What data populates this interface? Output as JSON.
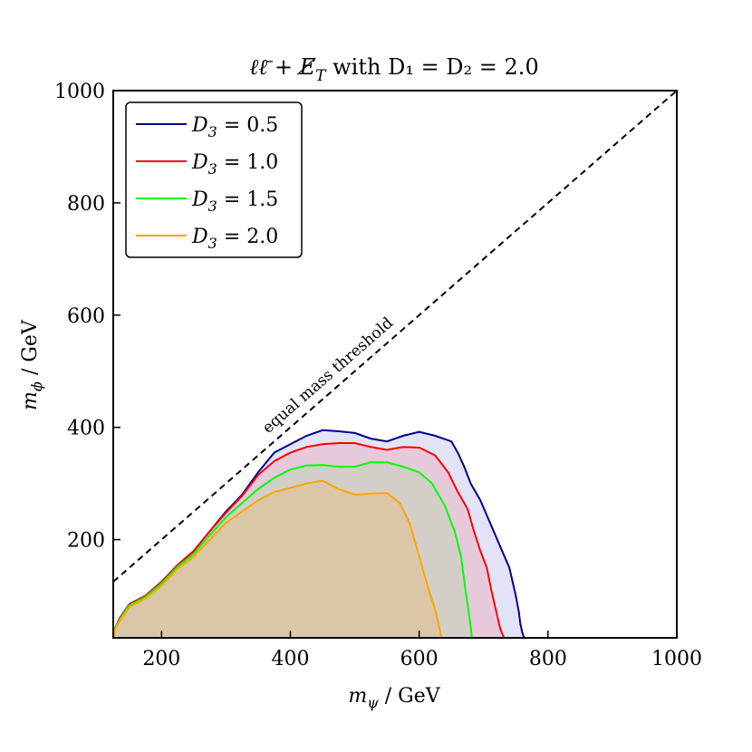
{
  "chart_data": {
    "type": "area",
    "title": "ℓℓ̄ + E̸T with D1 = D2 = 2.0",
    "title_parts": {
      "main": "ℓℓ̄ + E̸",
      "sub": "T",
      "tail": " with D₁ = D₂ = 2.0"
    },
    "xlabel": "mψ / GeV",
    "xlabel_parts": {
      "main": "m",
      "sub": "ψ",
      "tail": " / GeV"
    },
    "ylabel": "mϕ / GeV",
    "ylabel_parts": {
      "main": "m",
      "sub": "ϕ",
      "tail": " / GeV"
    },
    "xlim": [
      125,
      1000
    ],
    "ylim": [
      25,
      1000
    ],
    "xticks": [
      200,
      400,
      600,
      800,
      1000
    ],
    "yticks": [
      200,
      400,
      600,
      800,
      1000
    ],
    "grid": false,
    "legend_position": "top-left",
    "diagonal": {
      "label": "equal mass threshold",
      "style": "dashed",
      "color": "#000000",
      "from": [
        125,
        125
      ],
      "to": [
        1000,
        1000
      ]
    },
    "series": [
      {
        "name": "D3 = 0.5",
        "label_main": "D",
        "label_sub": "3",
        "label_tail": " = 0.5",
        "color": "#00008b",
        "fill": "rgba(0,0,180,0.11)",
        "x": [
          125,
          127,
          135,
          150,
          175,
          200,
          225,
          250,
          275,
          300,
          325,
          350,
          375,
          400,
          425,
          450,
          475,
          500,
          525,
          550,
          575,
          600,
          625,
          650,
          660,
          670,
          680,
          695,
          710,
          725,
          740,
          750,
          755,
          757,
          760,
          762,
          763
        ],
        "y": [
          25,
          40,
          60,
          85,
          100,
          125,
          155,
          180,
          215,
          250,
          280,
          320,
          355,
          370,
          385,
          395,
          393,
          390,
          380,
          375,
          385,
          392,
          385,
          375,
          355,
          330,
          300,
          270,
          230,
          190,
          150,
          100,
          70,
          50,
          35,
          28,
          25
        ]
      },
      {
        "name": "D3 = 1.0",
        "label_main": "D",
        "label_sub": "3",
        "label_tail": " = 1.0",
        "color": "#ff0000",
        "fill": "rgba(255,0,0,0.11)",
        "x": [
          125,
          127,
          135,
          150,
          175,
          200,
          225,
          250,
          275,
          300,
          325,
          350,
          375,
          400,
          425,
          450,
          475,
          500,
          525,
          550,
          575,
          600,
          625,
          645,
          660,
          675,
          685,
          695,
          705,
          712,
          720,
          725,
          728,
          732
        ],
        "y": [
          25,
          40,
          60,
          85,
          100,
          125,
          155,
          180,
          215,
          248,
          278,
          315,
          340,
          355,
          365,
          370,
          372,
          372,
          365,
          360,
          365,
          364,
          350,
          320,
          285,
          255,
          215,
          180,
          150,
          110,
          70,
          45,
          35,
          25
        ]
      },
      {
        "name": "D3 = 1.5",
        "label_main": "D",
        "label_sub": "3",
        "label_tail": " = 1.5",
        "color": "#00ff00",
        "fill": "rgba(0,255,0,0.08)",
        "x": [
          125,
          127,
          135,
          150,
          175,
          200,
          225,
          250,
          275,
          300,
          325,
          350,
          375,
          400,
          425,
          450,
          475,
          500,
          525,
          550,
          575,
          600,
          620,
          640,
          655,
          665,
          672,
          677,
          680,
          682
        ],
        "y": [
          25,
          40,
          58,
          83,
          98,
          122,
          152,
          175,
          208,
          240,
          265,
          290,
          310,
          325,
          332,
          333,
          330,
          330,
          338,
          338,
          330,
          320,
          300,
          260,
          215,
          170,
          110,
          70,
          45,
          25
        ]
      },
      {
        "name": "D3 = 2.0",
        "label_main": "D",
        "label_sub": "3",
        "label_tail": " = 2.0",
        "color": "#ffa500",
        "fill": "rgba(255,165,0,0.17)",
        "x": [
          125,
          127,
          135,
          150,
          175,
          200,
          225,
          250,
          275,
          300,
          325,
          350,
          375,
          400,
          425,
          450,
          475,
          500,
          525,
          550,
          570,
          585,
          595,
          605,
          615,
          625,
          630,
          634,
          636
        ],
        "y": [
          25,
          38,
          55,
          80,
          95,
          118,
          148,
          170,
          200,
          230,
          250,
          270,
          285,
          292,
          300,
          305,
          290,
          280,
          282,
          283,
          265,
          230,
          190,
          150,
          110,
          75,
          50,
          30,
          25
        ]
      }
    ]
  }
}
